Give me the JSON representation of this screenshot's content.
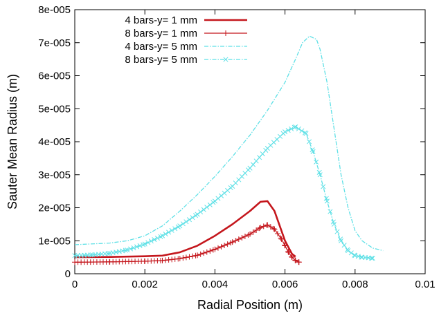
{
  "chart_data": {
    "type": "line",
    "title": "",
    "xlabel": "Radial Position (m)",
    "ylabel": "Sauter Mean Radius (m)",
    "xlim": [
      0,
      0.01
    ],
    "ylim": [
      0,
      8e-05
    ],
    "x_ticks": [
      {
        "value": 0,
        "label": "0"
      },
      {
        "value": 0.002,
        "label": "0.002"
      },
      {
        "value": 0.004,
        "label": "0.004"
      },
      {
        "value": 0.006,
        "label": "0.006"
      },
      {
        "value": 0.008,
        "label": "0.008"
      },
      {
        "value": 0.01,
        "label": "0.01"
      }
    ],
    "y_ticks": [
      {
        "value": 0,
        "label": "0"
      },
      {
        "value": 1e-05,
        "label": "1e-005"
      },
      {
        "value": 2e-05,
        "label": "2e-005"
      },
      {
        "value": 3e-05,
        "label": "3e-005"
      },
      {
        "value": 4e-05,
        "label": "4e-005"
      },
      {
        "value": 5e-05,
        "label": "5e-005"
      },
      {
        "value": 6e-05,
        "label": "6e-005"
      },
      {
        "value": 7e-05,
        "label": "7e-005"
      },
      {
        "value": 8e-05,
        "label": "8e-005"
      }
    ],
    "grid": false,
    "legend_position": "top-left",
    "series": [
      {
        "name": "4 bars-y= 1 mm",
        "color": "#c4161c",
        "marker": "none",
        "dash": "solid",
        "points": [
          [
            0,
            5e-06
          ],
          [
            0.001,
            5.1e-06
          ],
          [
            0.002,
            5.3e-06
          ],
          [
            0.0025,
            5.5e-06
          ],
          [
            0.003,
            6.5e-06
          ],
          [
            0.0035,
            8.5e-06
          ],
          [
            0.004,
            1.15e-05
          ],
          [
            0.0045,
            1.5e-05
          ],
          [
            0.005,
            1.9e-05
          ],
          [
            0.0053,
            2.18e-05
          ],
          [
            0.0055,
            2.2e-05
          ],
          [
            0.0057,
            1.9e-05
          ],
          [
            0.0059,
            1.3e-05
          ],
          [
            0.006,
            1e-05
          ],
          [
            0.0061,
            8e-06
          ],
          [
            0.0062,
            6e-06
          ],
          [
            0.0063,
            5.2e-06
          ]
        ]
      },
      {
        "name": "8 bars-y= 1 mm",
        "color": "#c4161c",
        "marker": "plus",
        "dash": "solid",
        "points": [
          [
            0,
            3.5e-06
          ],
          [
            0.001,
            3.6e-06
          ],
          [
            0.002,
            3.8e-06
          ],
          [
            0.0025,
            4e-06
          ],
          [
            0.003,
            4.6e-06
          ],
          [
            0.0035,
            5.6e-06
          ],
          [
            0.004,
            7.4e-06
          ],
          [
            0.0045,
            9.6e-06
          ],
          [
            0.005,
            1.2e-05
          ],
          [
            0.0053,
            1.4e-05
          ],
          [
            0.0055,
            1.48e-05
          ],
          [
            0.0057,
            1.35e-05
          ],
          [
            0.0059,
            1.05e-05
          ],
          [
            0.006,
            8.5e-06
          ],
          [
            0.0061,
            6.5e-06
          ],
          [
            0.0062,
            5e-06
          ],
          [
            0.0063,
            4e-06
          ],
          [
            0.0064,
            3.5e-06
          ]
        ]
      },
      {
        "name": "4 bars-y= 5 mm",
        "color": "#5ee0e6",
        "marker": "none",
        "dash": "dashdot",
        "points": [
          [
            0,
            8.8e-06
          ],
          [
            0.001,
            9.3e-06
          ],
          [
            0.0015,
            1e-05
          ],
          [
            0.002,
            1.15e-05
          ],
          [
            0.0025,
            1.45e-05
          ],
          [
            0.003,
            1.9e-05
          ],
          [
            0.0035,
            2.4e-05
          ],
          [
            0.004,
            2.95e-05
          ],
          [
            0.0045,
            3.55e-05
          ],
          [
            0.005,
            4.2e-05
          ],
          [
            0.0055,
            4.95e-05
          ],
          [
            0.006,
            5.8e-05
          ],
          [
            0.0063,
            6.5e-05
          ],
          [
            0.0065,
            7e-05
          ],
          [
            0.0067,
            7.2e-05
          ],
          [
            0.0069,
            7.1e-05
          ],
          [
            0.007,
            6.8e-05
          ],
          [
            0.0072,
            5.8e-05
          ],
          [
            0.0074,
            4.4e-05
          ],
          [
            0.0076,
            3e-05
          ],
          [
            0.0078,
            2e-05
          ],
          [
            0.008,
            1.3e-05
          ],
          [
            0.0082,
            1e-05
          ],
          [
            0.0085,
            7.8e-06
          ],
          [
            0.0088,
            7e-06
          ]
        ]
      },
      {
        "name": "8 bars-y= 5 mm",
        "color": "#5ee0e6",
        "marker": "cross",
        "dash": "dashdot",
        "points": [
          [
            0,
            5.5e-06
          ],
          [
            0.0005,
            5.7e-06
          ],
          [
            0.001,
            6.2e-06
          ],
          [
            0.0015,
            7.2e-06
          ],
          [
            0.002,
            9e-06
          ],
          [
            0.0025,
            1.15e-05
          ],
          [
            0.003,
            1.45e-05
          ],
          [
            0.0035,
            1.8e-05
          ],
          [
            0.004,
            2.2e-05
          ],
          [
            0.0045,
            2.65e-05
          ],
          [
            0.005,
            3.2e-05
          ],
          [
            0.0055,
            3.8e-05
          ],
          [
            0.006,
            4.3e-05
          ],
          [
            0.0063,
            4.45e-05
          ],
          [
            0.0066,
            4.25e-05
          ],
          [
            0.0068,
            3.7e-05
          ],
          [
            0.007,
            3e-05
          ],
          [
            0.0072,
            2.2e-05
          ],
          [
            0.0074,
            1.5e-05
          ],
          [
            0.0076,
            1e-05
          ],
          [
            0.0078,
            7e-06
          ],
          [
            0.008,
            5.5e-06
          ],
          [
            0.0082,
            5e-06
          ],
          [
            0.0085,
            4.7e-06
          ]
        ]
      }
    ]
  }
}
